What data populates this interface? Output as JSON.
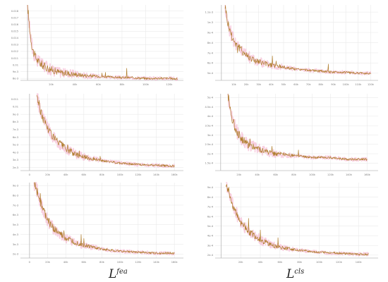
{
  "colors": {
    "line": "#b07e2e",
    "smooth_halo": "#f3a9c8",
    "grid": "#e6e6e6",
    "axis": "#9a9a9a",
    "start_marker": "#b8b8b8"
  },
  "captions": {
    "left": {
      "base": "L",
      "sup": "fea"
    },
    "right": {
      "base": "L",
      "sup": "cls"
    }
  },
  "chart_data": [
    {
      "id": "L-fea-1",
      "type": "line",
      "column": "left",
      "row": 1,
      "grid": true,
      "x_ticks": [
        {
          "v": 20,
          "t": "20k"
        },
        {
          "v": 40,
          "t": "40k"
        },
        {
          "v": 60,
          "t": "60k"
        },
        {
          "v": 80,
          "t": "80k"
        },
        {
          "v": 100,
          "t": "100k"
        },
        {
          "v": 120,
          "t": "120k"
        }
      ],
      "y_ticks": [
        {
          "v": 0.008,
          "t": "8e-3"
        },
        {
          "v": 0.009,
          "t": "9e-3"
        },
        {
          "v": 0.01,
          "t": "0.01"
        },
        {
          "v": 0.011,
          "t": "0.011"
        },
        {
          "v": 0.012,
          "t": "0.012"
        },
        {
          "v": 0.013,
          "t": "0.013"
        },
        {
          "v": 0.014,
          "t": "0.014"
        },
        {
          "v": 0.015,
          "t": "0.015"
        },
        {
          "v": 0.016,
          "t": "0.016"
        },
        {
          "v": 0.017,
          "t": "0.017"
        },
        {
          "v": 0.018,
          "t": "0.018"
        }
      ],
      "xlim": [
        -6,
        132
      ],
      "ylim": [
        0.0077,
        0.0189
      ],
      "start_marker_x": 0,
      "series": [
        {
          "x": [
            0,
            2,
            4,
            6,
            8,
            10,
            15,
            20,
            25,
            30,
            40,
            50,
            60,
            70,
            80,
            90,
            100,
            110,
            120,
            127
          ],
          "y": [
            0.0189,
            0.015,
            0.0125,
            0.0114,
            0.0108,
            0.0103,
            0.0097,
            0.0093,
            0.009,
            0.0088,
            0.0086,
            0.0084,
            0.0083,
            0.0082,
            0.0081,
            0.0081,
            0.008,
            0.008,
            0.008,
            0.0079
          ]
        }
      ],
      "spikes": [
        {
          "x": 34,
          "y": 0.0091
        },
        {
          "x": 63,
          "y": 0.0088
        },
        {
          "x": 66,
          "y": 0.0089
        },
        {
          "x": 84,
          "y": 0.0095
        }
      ]
    },
    {
      "id": "L-cls-1",
      "type": "line",
      "column": "right",
      "row": 1,
      "grid": true,
      "x_ticks": [
        {
          "v": 10,
          "t": "10k"
        },
        {
          "v": 20,
          "t": "20k"
        },
        {
          "v": 30,
          "t": "30k"
        },
        {
          "v": 40,
          "t": "40k"
        },
        {
          "v": 50,
          "t": "50k"
        },
        {
          "v": 60,
          "t": "60k"
        },
        {
          "v": 70,
          "t": "70k"
        },
        {
          "v": 80,
          "t": "80k"
        },
        {
          "v": 90,
          "t": "90k"
        },
        {
          "v": 100,
          "t": "100k"
        },
        {
          "v": 110,
          "t": "110k"
        },
        {
          "v": 120,
          "t": "120k"
        }
      ],
      "y_ticks": [
        {
          "v": 0.0005,
          "t": "5e-4"
        },
        {
          "v": 0.0006,
          "t": "6e-4"
        },
        {
          "v": 0.0007,
          "t": "7e-4"
        },
        {
          "v": 0.0008,
          "t": "8e-4"
        },
        {
          "v": 0.0009,
          "t": "9e-4"
        },
        {
          "v": 0.001,
          "t": "1e-3"
        },
        {
          "v": 0.0011,
          "t": "1.1e-3"
        }
      ],
      "xlim": [
        -5,
        126
      ],
      "ylim": [
        0.00043,
        0.00117
      ],
      "start_marker_x": 0,
      "series": [
        {
          "x": [
            3,
            5,
            8,
            10,
            15,
            20,
            25,
            30,
            40,
            50,
            60,
            70,
            80,
            90,
            100,
            110,
            120
          ],
          "y": [
            0.00117,
            0.001,
            0.00088,
            0.00082,
            0.00074,
            0.00068,
            0.00064,
            0.00061,
            0.00058,
            0.00056,
            0.00054,
            0.00053,
            0.00052,
            0.00051,
            0.00051,
            0.0005,
            0.0005
          ]
        }
      ],
      "spikes": [
        {
          "x": 13,
          "y": 0.0007
        },
        {
          "x": 41,
          "y": 0.00067
        },
        {
          "x": 44,
          "y": 0.00062
        },
        {
          "x": 86,
          "y": 0.00059
        }
      ]
    },
    {
      "id": "L-fea-2",
      "type": "line",
      "column": "left",
      "row": 2,
      "grid": true,
      "x_ticks": [
        {
          "v": 0,
          "t": "0"
        },
        {
          "v": 20,
          "t": "20k"
        },
        {
          "v": 40,
          "t": "40k"
        },
        {
          "v": 60,
          "t": "60k"
        },
        {
          "v": 80,
          "t": "80k"
        },
        {
          "v": 100,
          "t": "100k"
        },
        {
          "v": 120,
          "t": "120k"
        },
        {
          "v": 140,
          "t": "140k"
        },
        {
          "v": 160,
          "t": "160k"
        }
      ],
      "y_ticks": [
        {
          "v": 0.002,
          "t": "2e-3"
        },
        {
          "v": 0.003,
          "t": "3e-3"
        },
        {
          "v": 0.004,
          "t": "4e-3"
        },
        {
          "v": 0.005,
          "t": "5e-3"
        },
        {
          "v": 0.006,
          "t": "6e-3"
        },
        {
          "v": 0.007,
          "t": "7e-3"
        },
        {
          "v": 0.008,
          "t": "8e-3"
        },
        {
          "v": 0.009,
          "t": "9e-3"
        },
        {
          "v": 0.01,
          "t": "0.01"
        },
        {
          "v": 0.011,
          "t": "0.011"
        }
      ],
      "xlim": [
        -10,
        170
      ],
      "ylim": [
        0.0016,
        0.0117
      ],
      "start_marker_x": 0,
      "series": [
        {
          "x": [
            8,
            10,
            12,
            15,
            20,
            25,
            30,
            40,
            50,
            60,
            80,
            100,
            120,
            140,
            160
          ],
          "y": [
            0.0117,
            0.0105,
            0.0095,
            0.0085,
            0.0072,
            0.0063,
            0.0055,
            0.0045,
            0.0038,
            0.0034,
            0.0029,
            0.0026,
            0.0024,
            0.0023,
            0.0022
          ]
        }
      ],
      "spikes": [
        {
          "x": 18,
          "y": 0.0078
        },
        {
          "x": 42,
          "y": 0.005
        },
        {
          "x": 55,
          "y": 0.0042
        },
        {
          "x": 78,
          "y": 0.0035
        }
      ]
    },
    {
      "id": "L-cls-2",
      "type": "line",
      "column": "right",
      "row": 2,
      "grid": true,
      "x_ticks": [
        {
          "v": 20,
          "t": "20k"
        },
        {
          "v": 40,
          "t": "40k"
        },
        {
          "v": 60,
          "t": "60k"
        },
        {
          "v": 80,
          "t": "80k"
        },
        {
          "v": 100,
          "t": "100k"
        },
        {
          "v": 120,
          "t": "120k"
        },
        {
          "v": 140,
          "t": "140k"
        },
        {
          "v": 160,
          "t": "160k"
        }
      ],
      "y_ticks": [
        {
          "v": 0.00015,
          "t": "1.5e-4"
        },
        {
          "v": 0.0002,
          "t": "2e-4"
        },
        {
          "v": 0.00025,
          "t": "2.5e-4"
        },
        {
          "v": 0.0003,
          "t": "3e-4"
        },
        {
          "v": 0.00035,
          "t": "3.5e-4"
        },
        {
          "v": 0.0004,
          "t": "4e-4"
        },
        {
          "v": 0.00045,
          "t": "4.5e-4"
        },
        {
          "v": 0.0005,
          "t": "5e-4"
        }
      ],
      "xlim": [
        -6,
        172
      ],
      "ylim": [
        0.00011,
        0.00052
      ],
      "start_marker_x": 0,
      "series": [
        {
          "x": [
            8,
            10,
            12,
            15,
            20,
            25,
            30,
            40,
            50,
            60,
            80,
            100,
            120,
            140,
            160
          ],
          "y": [
            0.00052,
            0.00045,
            0.0004,
            0.00035,
            0.0003,
            0.00027,
            0.00025,
            0.00023,
            0.00021,
            0.0002,
            0.00019,
            0.00018,
            0.00018,
            0.00017,
            0.00017
          ]
        }
      ],
      "spikes": [
        {
          "x": 32,
          "y": 0.00028
        },
        {
          "x": 56,
          "y": 0.00024
        },
        {
          "x": 85,
          "y": 0.00022
        }
      ]
    },
    {
      "id": "L-fea-3",
      "type": "line",
      "column": "left",
      "row": 3,
      "grid": true,
      "x_ticks": [
        {
          "v": 0,
          "t": "0"
        },
        {
          "v": 20,
          "t": "20k"
        },
        {
          "v": 40,
          "t": "40k"
        },
        {
          "v": 60,
          "t": "60k"
        },
        {
          "v": 80,
          "t": "80k"
        },
        {
          "v": 100,
          "t": "100k"
        },
        {
          "v": 120,
          "t": "120k"
        },
        {
          "v": 140,
          "t": "140k"
        },
        {
          "v": 160,
          "t": "160k"
        }
      ],
      "y_ticks": [
        {
          "v": 0.002,
          "t": "2e-3"
        },
        {
          "v": 0.003,
          "t": "3e-3"
        },
        {
          "v": 0.004,
          "t": "4e-3"
        },
        {
          "v": 0.005,
          "t": "5e-3"
        },
        {
          "v": 0.006,
          "t": "6e-3"
        },
        {
          "v": 0.007,
          "t": "7e-3"
        },
        {
          "v": 0.008,
          "t": "8e-3"
        },
        {
          "v": 0.009,
          "t": "9e-3"
        }
      ],
      "xlim": [
        -10,
        170
      ],
      "ylim": [
        0.0016,
        0.0093
      ],
      "start_marker_x": 0,
      "series": [
        {
          "x": [
            5,
            8,
            10,
            12,
            15,
            20,
            25,
            30,
            40,
            50,
            60,
            80,
            100,
            120,
            140,
            160
          ],
          "y": [
            0.0093,
            0.0086,
            0.008,
            0.0074,
            0.0065,
            0.0055,
            0.0048,
            0.0043,
            0.0036,
            0.0032,
            0.0029,
            0.0025,
            0.0023,
            0.0022,
            0.0021,
            0.0021
          ]
        }
      ],
      "spikes": [
        {
          "x": 12,
          "y": 0.0082
        },
        {
          "x": 38,
          "y": 0.0044
        },
        {
          "x": 57,
          "y": 0.004
        },
        {
          "x": 60,
          "y": 0.0036
        }
      ]
    },
    {
      "id": "L-cls-3",
      "type": "line",
      "column": "right",
      "row": 3,
      "grid": true,
      "x_ticks": [
        {
          "v": 20,
          "t": "20k"
        },
        {
          "v": 40,
          "t": "40k"
        },
        {
          "v": 60,
          "t": "60k"
        },
        {
          "v": 80,
          "t": "80k"
        },
        {
          "v": 100,
          "t": "100k"
        },
        {
          "v": 120,
          "t": "120k"
        },
        {
          "v": 140,
          "t": "140k"
        }
      ],
      "y_ticks": [
        {
          "v": 0.0002,
          "t": "2e-4"
        },
        {
          "v": 0.0003,
          "t": "3e-4"
        },
        {
          "v": 0.0004,
          "t": "4e-4"
        },
        {
          "v": 0.0005,
          "t": "5e-4"
        },
        {
          "v": 0.0006,
          "t": "6e-4"
        },
        {
          "v": 0.0007,
          "t": "7e-4"
        },
        {
          "v": 0.0008,
          "t": "8e-4"
        },
        {
          "v": 0.0009,
          "t": "9e-4"
        }
      ],
      "xlim": [
        -6,
        160
      ],
      "ylim": [
        0.00017,
        0.00095
      ],
      "start_marker_x": 0,
      "series": [
        {
          "x": [
            5,
            8,
            10,
            12,
            15,
            20,
            25,
            30,
            40,
            50,
            60,
            80,
            100,
            120,
            140,
            150
          ],
          "y": [
            0.00095,
            0.00085,
            0.00078,
            0.00072,
            0.00064,
            0.00055,
            0.00048,
            0.00043,
            0.00036,
            0.00031,
            0.00028,
            0.00025,
            0.00023,
            0.00022,
            0.00021,
            0.00021
          ]
        }
      ],
      "spikes": [
        {
          "x": 28,
          "y": 0.00058
        },
        {
          "x": 40,
          "y": 0.00046
        },
        {
          "x": 58,
          "y": 0.00038
        }
      ]
    }
  ]
}
